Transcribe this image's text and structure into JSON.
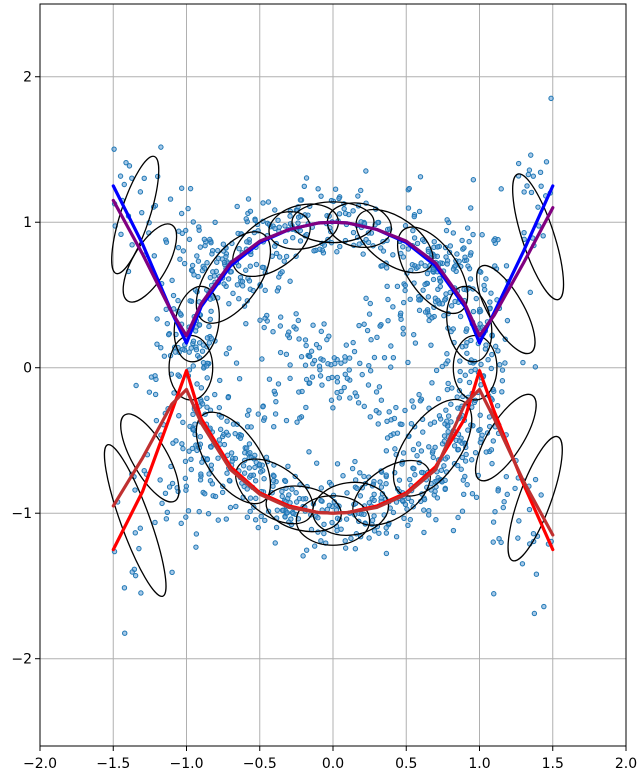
{
  "chart_data": {
    "type": "scatter",
    "title": "",
    "xlabel": "",
    "ylabel": "",
    "xlim": [
      -2.0,
      2.0
    ],
    "ylim": [
      -2.6,
      2.5
    ],
    "grid": true,
    "xticks": [
      -2.0,
      -1.5,
      -1.0,
      -0.5,
      0.0,
      0.5,
      1.0,
      1.5,
      2.0
    ],
    "xtick_labels": [
      "−2.0",
      "−1.5",
      "−1.0",
      "−0.5",
      "0.0",
      "0.5",
      "1.0",
      "1.5",
      "2.0"
    ],
    "yticks": [
      -2,
      -1,
      0,
      1,
      2
    ],
    "ytick_labels": [
      "−2",
      "−1",
      "0",
      "1",
      "2"
    ],
    "scatter": {
      "color": "#1f77b4",
      "description_of_distribution": [
        {
          "shape": "circle",
          "center": [
            0,
            0
          ],
          "radius": 1.0,
          "noise": 0.14,
          "count": 900
        },
        {
          "shape": "line",
          "from": [
            -1.5,
            1.25
          ],
          "to": [
            1.5,
            -1.25
          ],
          "noise": 0.13,
          "count": 220
        },
        {
          "shape": "line",
          "from": [
            -1.5,
            -1.25
          ],
          "to": [
            1.5,
            1.25
          ],
          "noise": 0.13,
          "count": 220
        }
      ]
    },
    "ellipses": [
      {
        "cx": 0.0,
        "cy": 1.0,
        "rx": 0.28,
        "ry": 0.14,
        "angle": 0
      },
      {
        "cx": 0.18,
        "cy": 0.98,
        "rx": 0.22,
        "ry": 0.15,
        "angle": -10
      },
      {
        "cx": -0.2,
        "cy": 0.97,
        "rx": 0.24,
        "ry": 0.15,
        "angle": 12
      },
      {
        "cx": 0.42,
        "cy": 0.87,
        "rx": 0.3,
        "ry": 0.16,
        "angle": -35
      },
      {
        "cx": -0.42,
        "cy": 0.85,
        "rx": 0.3,
        "ry": 0.17,
        "angle": 35
      },
      {
        "cx": 0.68,
        "cy": 0.67,
        "rx": 0.34,
        "ry": 0.17,
        "angle": -55
      },
      {
        "cx": -0.68,
        "cy": 0.62,
        "rx": 0.36,
        "ry": 0.18,
        "angle": 55
      },
      {
        "cx": -0.93,
        "cy": 0.3,
        "rx": 0.26,
        "ry": 0.15,
        "angle": 80
      },
      {
        "cx": -0.97,
        "cy": 0.0,
        "rx": 0.22,
        "ry": 0.15,
        "angle": 90
      },
      {
        "cx": 0.93,
        "cy": 0.3,
        "rx": 0.26,
        "ry": 0.15,
        "angle": -80
      },
      {
        "cx": 0.97,
        "cy": 0.0,
        "rx": 0.22,
        "ry": 0.15,
        "angle": 90
      },
      {
        "cx": -0.68,
        "cy": -0.62,
        "rx": 0.36,
        "ry": 0.18,
        "angle": -55
      },
      {
        "cx": 0.68,
        "cy": -0.55,
        "rx": 0.38,
        "ry": 0.19,
        "angle": 55
      },
      {
        "cx": -0.4,
        "cy": -0.85,
        "rx": 0.3,
        "ry": 0.17,
        "angle": -35
      },
      {
        "cx": 0.4,
        "cy": -0.86,
        "rx": 0.3,
        "ry": 0.17,
        "angle": 35
      },
      {
        "cx": -0.2,
        "cy": -0.97,
        "rx": 0.26,
        "ry": 0.15,
        "angle": -12
      },
      {
        "cx": 0.0,
        "cy": -1.05,
        "rx": 0.25,
        "ry": 0.17,
        "angle": 0
      },
      {
        "cx": 0.12,
        "cy": -0.97,
        "rx": 0.26,
        "ry": 0.18,
        "angle": 8
      },
      {
        "cx": -1.35,
        "cy": 1.05,
        "rx": 0.42,
        "ry": 0.1,
        "angle": 72
      },
      {
        "cx": -1.25,
        "cy": 0.72,
        "rx": 0.3,
        "ry": 0.12,
        "angle": 60
      },
      {
        "cx": 1.4,
        "cy": 0.9,
        "rx": 0.45,
        "ry": 0.11,
        "angle": -72
      },
      {
        "cx": 1.18,
        "cy": 0.4,
        "rx": 0.34,
        "ry": 0.12,
        "angle": -60
      },
      {
        "cx": -1.35,
        "cy": -1.05,
        "rx": 0.55,
        "ry": 0.1,
        "angle": -70
      },
      {
        "cx": -1.25,
        "cy": -0.62,
        "rx": 0.34,
        "ry": 0.12,
        "angle": -60
      },
      {
        "cx": 1.38,
        "cy": -0.9,
        "rx": 0.45,
        "ry": 0.11,
        "angle": 70
      },
      {
        "cx": 1.18,
        "cy": -0.48,
        "rx": 0.34,
        "ry": 0.12,
        "angle": 58
      }
    ],
    "series": [
      {
        "color": "#0000ff",
        "x": [
          -1.5,
          -1.3,
          -1.1,
          -1.0,
          -0.9,
          -0.7,
          -0.5,
          -0.3,
          -0.1,
          0.0,
          0.1,
          0.3,
          0.5,
          0.7,
          0.9,
          1.0,
          1.1,
          1.3,
          1.5
        ],
        "y": [
          1.25,
          0.85,
          0.38,
          0.17,
          0.42,
          0.7,
          0.86,
          0.95,
          0.995,
          1.0,
          0.995,
          0.95,
          0.86,
          0.7,
          0.42,
          0.17,
          0.38,
          0.8,
          1.25
        ]
      },
      {
        "color": "#800080",
        "x": [
          -1.5,
          -1.3,
          -1.1,
          -1.0,
          -0.9,
          -0.7,
          -0.5,
          -0.3,
          -0.1,
          0.0,
          0.1,
          0.3,
          0.5,
          0.7,
          0.9,
          1.0,
          1.1,
          1.3,
          1.5
        ],
        "y": [
          1.15,
          0.78,
          0.38,
          0.22,
          0.44,
          0.72,
          0.87,
          0.95,
          0.995,
          1.0,
          0.995,
          0.95,
          0.87,
          0.72,
          0.44,
          0.22,
          0.36,
          0.72,
          1.1
        ]
      },
      {
        "color": "#ff0000",
        "x": [
          -1.5,
          -1.3,
          -1.1,
          -1.0,
          -0.9,
          -0.7,
          -0.5,
          -0.3,
          -0.1,
          0.0,
          0.1,
          0.3,
          0.5,
          0.7,
          0.9,
          1.0,
          1.1,
          1.3,
          1.5
        ],
        "y": [
          -1.25,
          -0.85,
          -0.3,
          -0.02,
          -0.35,
          -0.68,
          -0.86,
          -0.95,
          -0.995,
          -1.0,
          -0.995,
          -0.95,
          -0.86,
          -0.68,
          -0.35,
          -0.02,
          -0.3,
          -0.8,
          -1.25
        ]
      },
      {
        "color": "#c03030",
        "x": [
          -1.5,
          -1.3,
          -1.1,
          -1.0,
          -0.9,
          -0.7,
          -0.5,
          -0.3,
          -0.1,
          0.0,
          0.1,
          0.3,
          0.5,
          0.7,
          0.9,
          1.0,
          1.1,
          1.3,
          1.5
        ],
        "y": [
          -0.95,
          -0.62,
          -0.25,
          -0.15,
          -0.38,
          -0.7,
          -0.87,
          -0.96,
          -0.995,
          -1.0,
          -0.995,
          -0.96,
          -0.87,
          -0.7,
          -0.25,
          -0.15,
          -0.35,
          -0.78,
          -1.15
        ]
      }
    ]
  }
}
